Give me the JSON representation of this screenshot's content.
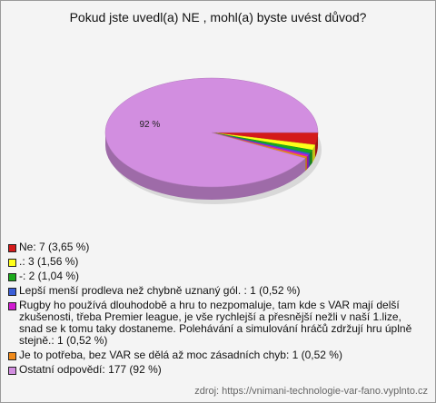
{
  "chart_data": {
    "type": "pie",
    "title": "Pokud jste uvedl(a) NE , mohl(a) byste uvést důvod?",
    "categories": [
      "Ne: 7 (3,65 %)",
      ".: 3 (1,56 %)",
      "-: 2 (1,04 %)",
      "Lepší menší prodleva než chybně uznaný gól. : 1 (0,52 %)",
      "Rugby ho používá dlouhodobě a hru to nezpomaluje, tam kde s VAR mají delší zkušenosti, třeba Premier league, je vše rychlejší a přesnější nežli v naší 1.lize, snad se k tomu taky dostaneme. Polehávání a simulování hráčů zdržují hru úplně stejně.: 1 (0,52 %)",
      "Je to potřeba, bez VAR se dělá až moc zásadních chyb: 1 (0,52 %)",
      "Ostatní odpovědí: 177 (92 %)"
    ],
    "values": [
      3.65,
      1.56,
      1.04,
      0.52,
      0.52,
      0.52,
      92
    ],
    "value_labels": [
      null,
      null,
      null,
      null,
      null,
      null,
      "92 %"
    ],
    "colors": [
      "#d41a1a",
      "#ffff1a",
      "#1aaa1a",
      "#3a5ed8",
      "#d21ad2",
      "#f08a1a",
      "#d28ee0"
    ],
    "source": "zdroj: https://vnimani-technologie-var-fano.vyplnto.cz"
  }
}
